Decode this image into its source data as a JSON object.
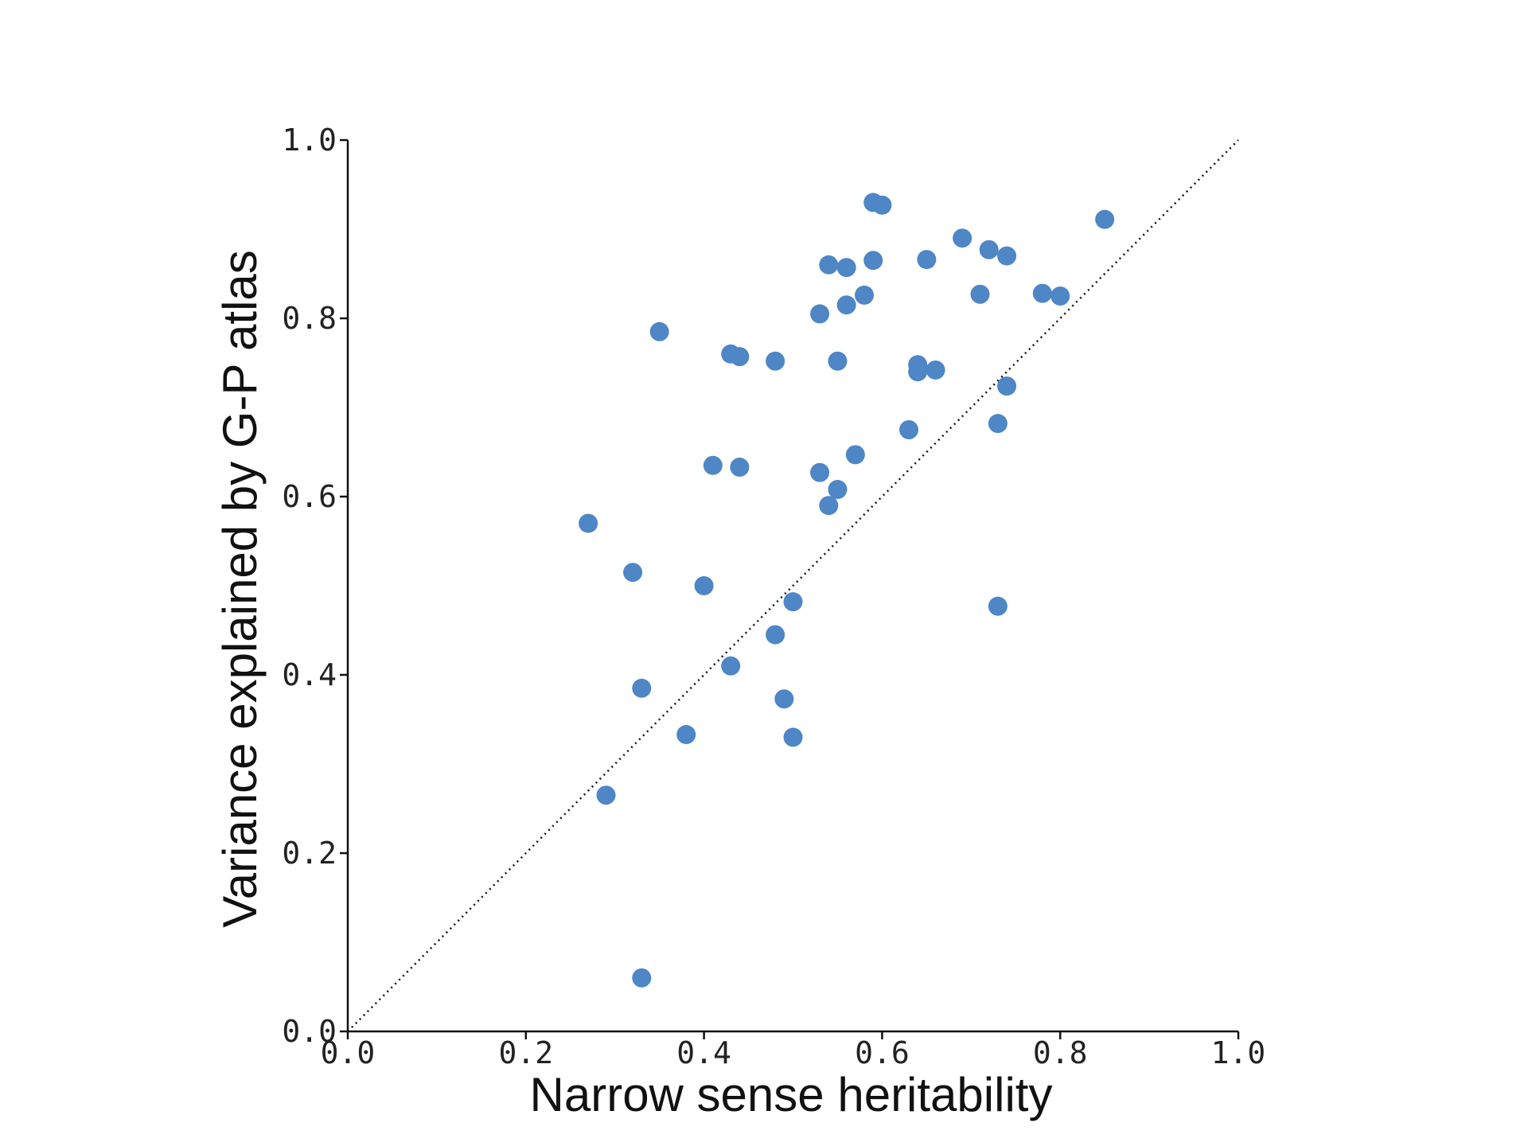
{
  "chart_data": {
    "type": "scatter",
    "title": "",
    "xlabel": "Narrow sense heritability",
    "ylabel": "Variance explained by G-P atlas",
    "xlim": [
      0.0,
      1.0
    ],
    "ylim": [
      0.0,
      1.0
    ],
    "xticks": [
      "0.0",
      "0.2",
      "0.4",
      "0.6",
      "0.8",
      "1.0"
    ],
    "yticks": [
      "0.0",
      "0.2",
      "0.4",
      "0.6",
      "0.8",
      "1.0"
    ],
    "grid": false,
    "legend": false,
    "reference_line": {
      "type": "identity",
      "style": "dotted"
    },
    "marker_color": "#4e86c6",
    "points": [
      [
        0.27,
        0.57
      ],
      [
        0.29,
        0.265
      ],
      [
        0.32,
        0.515
      ],
      [
        0.33,
        0.385
      ],
      [
        0.33,
        0.06
      ],
      [
        0.35,
        0.785
      ],
      [
        0.38,
        0.333
      ],
      [
        0.4,
        0.5
      ],
      [
        0.41,
        0.635
      ],
      [
        0.43,
        0.76
      ],
      [
        0.43,
        0.41
      ],
      [
        0.44,
        0.757
      ],
      [
        0.44,
        0.633
      ],
      [
        0.48,
        0.752
      ],
      [
        0.48,
        0.445
      ],
      [
        0.49,
        0.373
      ],
      [
        0.5,
        0.482
      ],
      [
        0.5,
        0.33
      ],
      [
        0.53,
        0.805
      ],
      [
        0.53,
        0.627
      ],
      [
        0.54,
        0.86
      ],
      [
        0.54,
        0.59
      ],
      [
        0.55,
        0.752
      ],
      [
        0.55,
        0.608
      ],
      [
        0.56,
        0.857
      ],
      [
        0.56,
        0.815
      ],
      [
        0.57,
        0.647
      ],
      [
        0.58,
        0.826
      ],
      [
        0.59,
        0.93
      ],
      [
        0.59,
        0.865
      ],
      [
        0.6,
        0.927
      ],
      [
        0.63,
        0.675
      ],
      [
        0.64,
        0.748
      ],
      [
        0.64,
        0.74
      ],
      [
        0.65,
        0.866
      ],
      [
        0.66,
        0.742
      ],
      [
        0.69,
        0.89
      ],
      [
        0.71,
        0.827
      ],
      [
        0.72,
        0.877
      ],
      [
        0.73,
        0.682
      ],
      [
        0.73,
        0.477
      ],
      [
        0.74,
        0.87
      ],
      [
        0.74,
        0.724
      ],
      [
        0.78,
        0.828
      ],
      [
        0.8,
        0.825
      ],
      [
        0.85,
        0.911
      ]
    ]
  }
}
